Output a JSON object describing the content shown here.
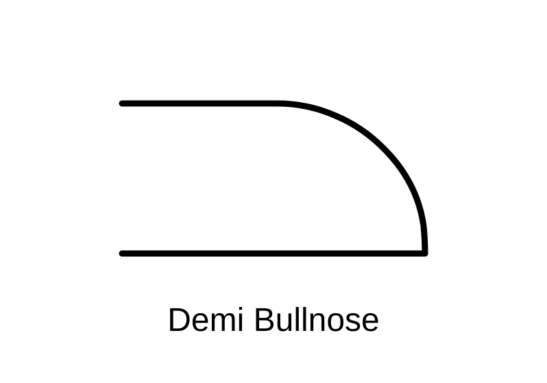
{
  "diagram": {
    "caption": "Demi Bullnose",
    "stroke_color": "#000000",
    "background_color": "#ffffff"
  }
}
